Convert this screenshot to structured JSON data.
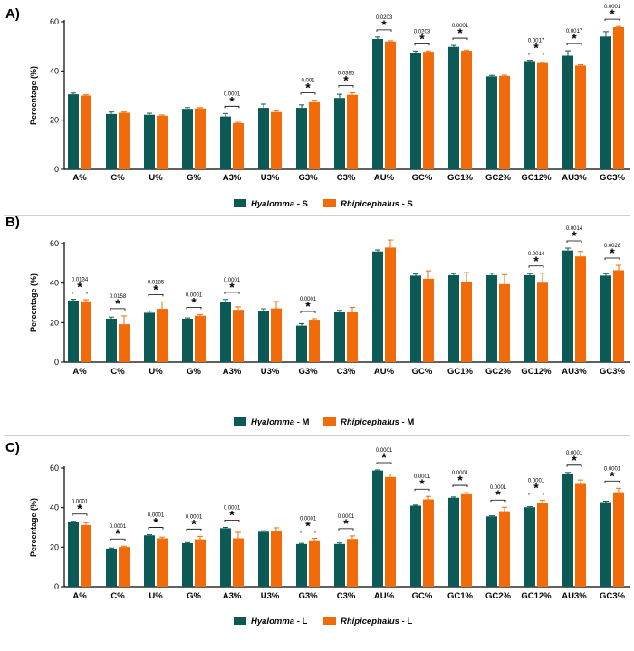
{
  "colors": {
    "series1": "#0c5a55",
    "series2": "#f26b0a",
    "separator": "#cfcfcf"
  },
  "chart_data": [
    {
      "type": "bar",
      "panel": "A)",
      "ylabel": "Percentage (%)",
      "ylim": [
        0,
        60
      ],
      "yticks": [
        "0",
        "20",
        "40",
        "60"
      ],
      "categories": [
        "A%",
        "C%",
        "U%",
        "G%",
        "A3%",
        "U3%",
        "G3%",
        "C3%",
        "AU%",
        "GC%",
        "GC1%",
        "GC2%",
        "GC12%",
        "AU3%",
        "GC3%"
      ],
      "series": [
        {
          "name": "Hyalomma",
          "suffix": " - S",
          "values": [
            30.5,
            22.5,
            22.2,
            24.6,
            21.5,
            25,
            25,
            29,
            53,
            47.3,
            49.8,
            37.8,
            44,
            46.2,
            54
          ],
          "errors": [
            0.5,
            0.8,
            0.6,
            0.5,
            1.2,
            1.5,
            1.2,
            1.5,
            0.8,
            0.8,
            0.6,
            0.4,
            0.3,
            2,
            2
          ]
        },
        {
          "name": "Rhipicephalus",
          "suffix": " - S",
          "values": [
            30,
            23,
            21.8,
            24.8,
            18.8,
            23.3,
            27.3,
            30.3,
            52,
            47.8,
            48.2,
            38,
            43.2,
            42.2,
            57.8
          ],
          "errors": [
            0.3,
            0.3,
            0.3,
            0.3,
            0.3,
            0.5,
            0.8,
            0.8,
            0.3,
            0.3,
            0.3,
            0.3,
            0.3,
            0.3,
            0.3
          ]
        }
      ],
      "significance": [
        {
          "index": 4,
          "p": "0.0001"
        },
        {
          "index": 6,
          "p": "0.001"
        },
        {
          "index": 7,
          "p": "0.0385"
        },
        {
          "index": 8,
          "p": "0.0203"
        },
        {
          "index": 9,
          "p": "0.0203"
        },
        {
          "index": 10,
          "p": "0.0001"
        },
        {
          "index": 12,
          "p": "0.0017"
        },
        {
          "index": 13,
          "p": "0.0017"
        },
        {
          "index": 14,
          "p": "0.0001"
        }
      ],
      "star": "*"
    },
    {
      "type": "bar",
      "panel": "B)",
      "ylabel": "Percentage (%)",
      "ylim": [
        0,
        60
      ],
      "yticks": [
        "0",
        "20",
        "40",
        "60"
      ],
      "categories": [
        "A%",
        "C%",
        "U%",
        "G%",
        "A3%",
        "U3%",
        "G3%",
        "C3%",
        "AU%",
        "GC%",
        "GC1%",
        "GC2%",
        "GC12%",
        "AU3%",
        "GC3%"
      ],
      "series": [
        {
          "name": "Hyalomma",
          "suffix": " - M",
          "values": [
            31.2,
            22,
            25,
            22,
            30.5,
            26,
            18.5,
            25.2,
            56,
            43.8,
            44,
            44,
            44,
            56.5,
            43.8
          ],
          "errors": [
            0.6,
            0.8,
            0.8,
            0.4,
            1.2,
            1,
            1,
            1,
            0.8,
            0.8,
            0.8,
            1,
            0.8,
            1.2,
            1
          ]
        },
        {
          "name": "Rhipicephalus",
          "suffix": " - M",
          "values": [
            30.8,
            19.2,
            27,
            23.5,
            26.5,
            27.2,
            21.5,
            25.2,
            58,
            42.2,
            40.8,
            39.5,
            40.2,
            53.5,
            46.5
          ],
          "errors": [
            0.8,
            4.2,
            3.5,
            0.6,
            1.5,
            3.5,
            0.5,
            2.5,
            3.8,
            4,
            4.5,
            4.8,
            4.8,
            2.5,
            2.5
          ]
        }
      ],
      "significance": [
        {
          "index": 0,
          "p": "0.0134"
        },
        {
          "index": 1,
          "p": "0.0158"
        },
        {
          "index": 2,
          "p": "0.0185"
        },
        {
          "index": 3,
          "p": "0.0001"
        },
        {
          "index": 4,
          "p": "0.0001"
        },
        {
          "index": 6,
          "p": "0.0001"
        },
        {
          "index": 12,
          "p": "0.0014"
        },
        {
          "index": 13,
          "p": "0.0014"
        },
        {
          "index": 14,
          "p": "0.0028"
        }
      ],
      "star": "*"
    },
    {
      "type": "bar",
      "panel": "C)",
      "ylabel": "Percentage (%)",
      "ylim": [
        0,
        60
      ],
      "yticks": [
        "0",
        "20",
        "40",
        "60"
      ],
      "categories": [
        "A%",
        "C%",
        "U%",
        "G%",
        "A3%",
        "U3%",
        "G3%",
        "C3%",
        "AU%",
        "GC%",
        "GC1%",
        "GC2%",
        "GC12%",
        "AU3%",
        "GC3%"
      ],
      "series": [
        {
          "name": "Hyalomma",
          "suffix": " - L",
          "values": [
            32.8,
            19.3,
            26,
            22,
            29.6,
            27.8,
            21.6,
            21.6,
            58.8,
            41,
            45,
            35.6,
            40.2,
            57.2,
            42.8
          ],
          "errors": [
            0.3,
            0.3,
            0.3,
            0.3,
            0.4,
            0.5,
            0.3,
            0.5,
            0.3,
            0.3,
            0.4,
            0.3,
            0.3,
            0.6,
            0.5
          ]
        },
        {
          "name": "Rhipicephalus",
          "suffix": " - L",
          "values": [
            31.2,
            20.1,
            24.5,
            24,
            24.5,
            28,
            23.5,
            24.2,
            55.5,
            44.2,
            46.8,
            38.2,
            42.5,
            52,
            47.8
          ],
          "errors": [
            1.2,
            0.4,
            0.6,
            1.5,
            3,
            1.8,
            1,
            1.5,
            1.5,
            1.5,
            0.8,
            2,
            1.2,
            2,
            2
          ]
        }
      ],
      "significance": [
        {
          "index": 0,
          "p": "0.0001"
        },
        {
          "index": 1,
          "p": "0.0001"
        },
        {
          "index": 2,
          "p": "0.0001"
        },
        {
          "index": 3,
          "p": "0.0001"
        },
        {
          "index": 4,
          "p": "0.0001"
        },
        {
          "index": 6,
          "p": "0.0001"
        },
        {
          "index": 7,
          "p": "0.0001"
        },
        {
          "index": 8,
          "p": "0.0001"
        },
        {
          "index": 9,
          "p": "0.0001"
        },
        {
          "index": 10,
          "p": "0.0001"
        },
        {
          "index": 11,
          "p": "0.0001"
        },
        {
          "index": 12,
          "p": "0.0001"
        },
        {
          "index": 13,
          "p": "0.0001"
        },
        {
          "index": 14,
          "p": "0.0001"
        }
      ],
      "star": "*"
    }
  ]
}
